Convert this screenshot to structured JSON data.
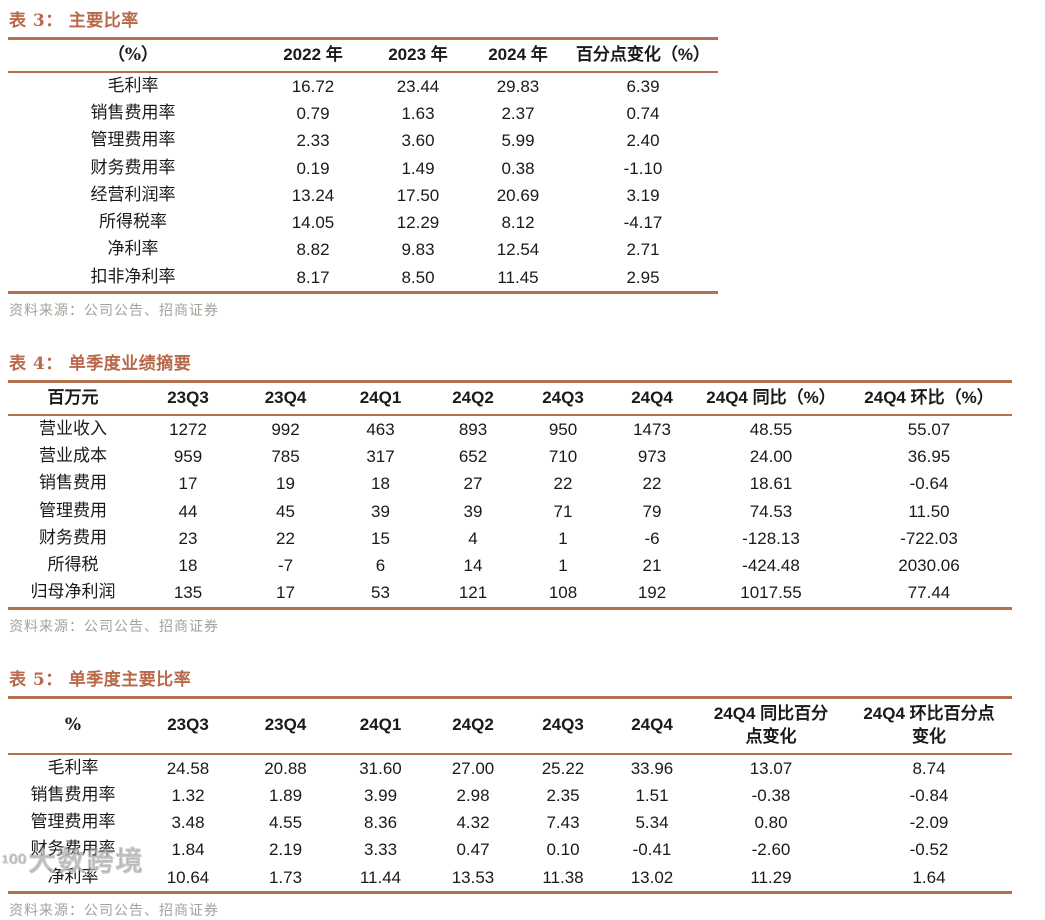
{
  "accent_color": "#b9694b",
  "rule_color": "#b3704e",
  "source_text_color": "#a6a19a",
  "tables": [
    {
      "title_prefix": "表 3：",
      "title": "主要比率",
      "columns": [
        "（%）",
        "2022 年",
        "2023 年",
        "2024 年",
        "百分点变化（%）"
      ],
      "rows": [
        [
          "毛利率",
          "16.72",
          "23.44",
          "29.83",
          "6.39"
        ],
        [
          "销售费用率",
          "0.79",
          "1.63",
          "2.37",
          "0.74"
        ],
        [
          "管理费用率",
          "2.33",
          "3.60",
          "5.99",
          "2.40"
        ],
        [
          "财务费用率",
          "0.19",
          "1.49",
          "0.38",
          "-1.10"
        ],
        [
          "经营利润率",
          "13.24",
          "17.50",
          "20.69",
          "3.19"
        ],
        [
          "所得税率",
          "14.05",
          "12.29",
          "8.12",
          "-4.17"
        ],
        [
          "净利率",
          "8.82",
          "9.83",
          "12.54",
          "2.71"
        ],
        [
          "扣非净利率",
          "8.17",
          "8.50",
          "11.45",
          "2.95"
        ]
      ],
      "source": "资料来源：公司公告、招商证券"
    },
    {
      "title_prefix": "表 4：",
      "title": "单季度业绩摘要",
      "columns": [
        "百万元",
        "23Q3",
        "23Q4",
        "24Q1",
        "24Q2",
        "24Q3",
        "24Q4",
        "24Q4 同比（%）",
        "24Q4 环比（%）"
      ],
      "rows": [
        [
          "营业收入",
          "1272",
          "992",
          "463",
          "893",
          "950",
          "1473",
          "48.55",
          "55.07"
        ],
        [
          "营业成本",
          "959",
          "785",
          "317",
          "652",
          "710",
          "973",
          "24.00",
          "36.95"
        ],
        [
          "销售费用",
          "17",
          "19",
          "18",
          "27",
          "22",
          "22",
          "18.61",
          "-0.64"
        ],
        [
          "管理费用",
          "44",
          "45",
          "39",
          "39",
          "71",
          "79",
          "74.53",
          "11.50"
        ],
        [
          "财务费用",
          "23",
          "22",
          "15",
          "4",
          "1",
          "-6",
          "-128.13",
          "-722.03"
        ],
        [
          "所得税",
          "18",
          "-7",
          "6",
          "14",
          "1",
          "21",
          "-424.48",
          "2030.06"
        ],
        [
          "归母净利润",
          "135",
          "17",
          "53",
          "121",
          "108",
          "192",
          "1017.55",
          "77.44"
        ]
      ],
      "source": "资料来源：公司公告、招商证券"
    },
    {
      "title_prefix": "表 5：",
      "title": "单季度主要比率",
      "columns": [
        "%",
        "23Q3",
        "23Q4",
        "24Q1",
        "24Q2",
        "24Q3",
        "24Q4",
        "24Q4 同比百分\n点变化",
        "24Q4 环比百分点\n变化"
      ],
      "rows": [
        [
          "毛利率",
          "24.58",
          "20.88",
          "31.60",
          "27.00",
          "25.22",
          "33.96",
          "13.07",
          "8.74"
        ],
        [
          "销售费用率",
          "1.32",
          "1.89",
          "3.99",
          "2.98",
          "2.35",
          "1.51",
          "-0.38",
          "-0.84"
        ],
        [
          "管理费用率",
          "3.48",
          "4.55",
          "8.36",
          "4.32",
          "7.43",
          "5.34",
          "0.80",
          "-2.09"
        ],
        [
          "财务费用率",
          "1.84",
          "2.19",
          "3.33",
          "0.47",
          "0.10",
          "-0.41",
          "-2.60",
          "-0.52"
        ],
        [
          "净利率",
          "10.64",
          "1.73",
          "11.44",
          "13.53",
          "11.38",
          "13.02",
          "11.29",
          "1.64"
        ]
      ],
      "source": "资料来源：公司公告、招商证券"
    }
  ],
  "watermark": {
    "logo": "¹⁰⁰",
    "text": "大数跨境"
  }
}
